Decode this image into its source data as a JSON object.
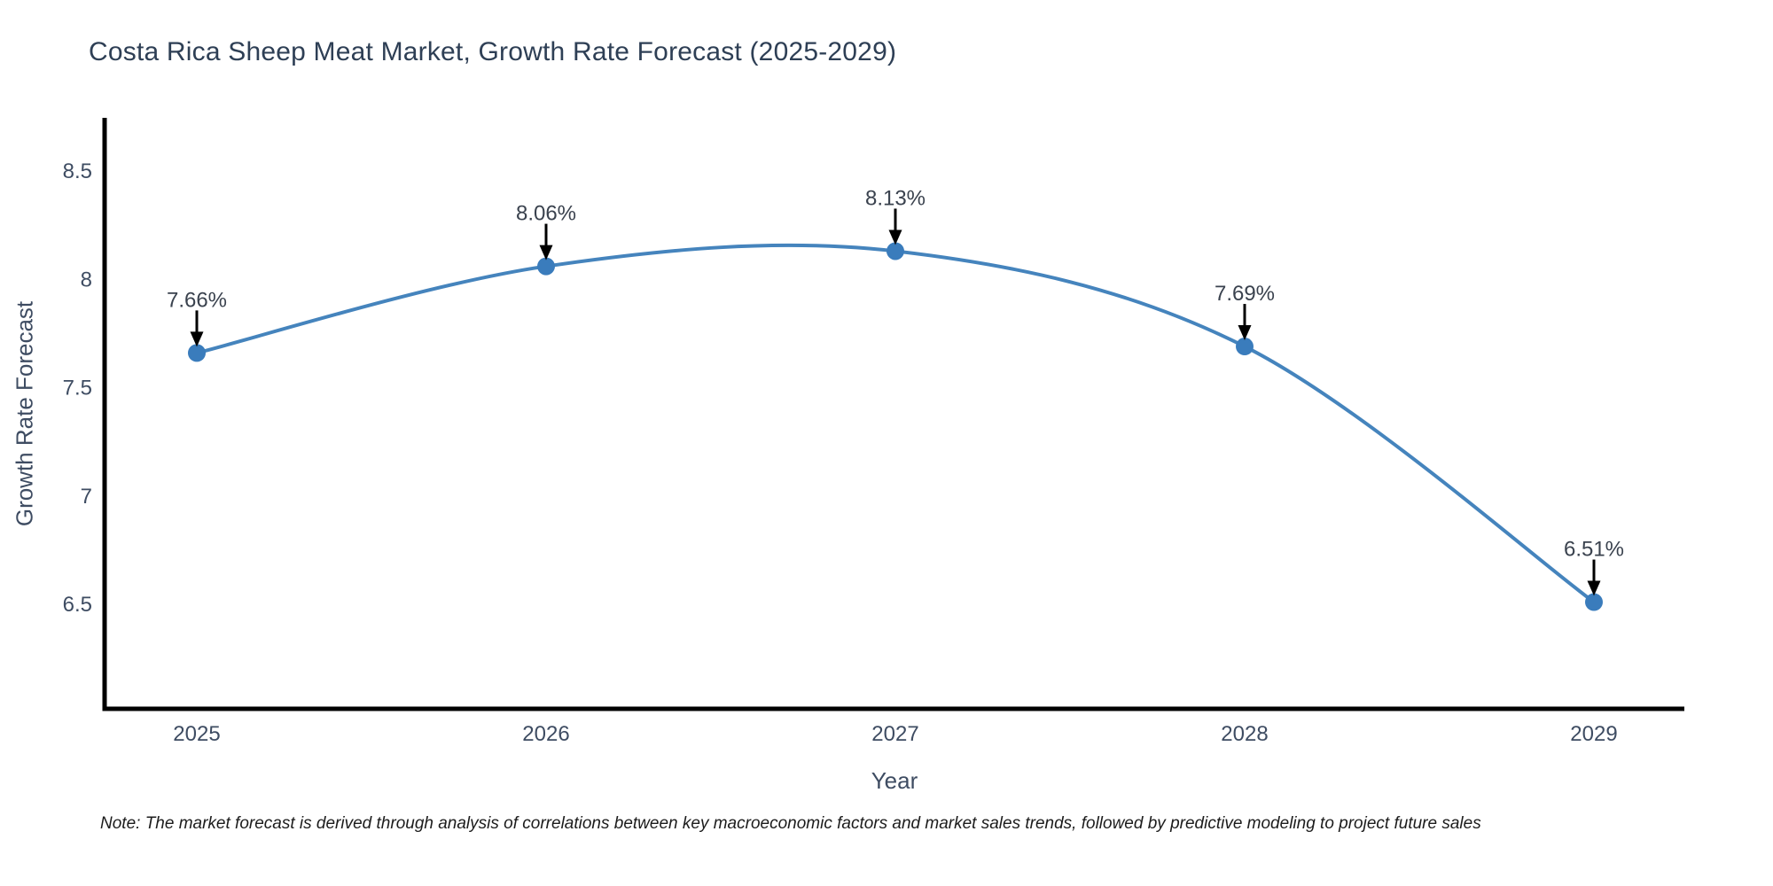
{
  "title": "Costa Rica Sheep Meat Market, Growth Rate Forecast (2025-2029)",
  "note": "Note: The market forecast is derived through analysis of correlations between key macroeconomic factors and market sales trends, followed by predictive modeling to project future sales",
  "chart_data": {
    "type": "line",
    "title": "Costa Rica Sheep Meat Market, Growth Rate Forecast (2025-2029)",
    "xlabel": "Year",
    "ylabel": "Growth Rate Forecast",
    "x": [
      2025,
      2026,
      2027,
      2028,
      2029
    ],
    "values": [
      7.66,
      8.06,
      8.13,
      7.69,
      6.51
    ],
    "point_labels": [
      "7.66%",
      "8.06%",
      "8.13%",
      "7.69%",
      "6.51%"
    ],
    "yticks": [
      8.5,
      8,
      7.5,
      7,
      6.5
    ],
    "ylim": [
      5.97,
      8.74
    ],
    "grid": false,
    "legend": "none",
    "line_shape": "spline",
    "annotation_style": "down-arrow-to-point",
    "colors": {
      "line": "#4584bd",
      "marker": "#3a7cbc",
      "axis": "#000000",
      "tick_text": "#3e4c62",
      "label_text": "#3a424e",
      "title_text": "#2e3f55",
      "note_text": "#1c1c1c",
      "arrow": "#000000",
      "background": "#ffffff"
    }
  }
}
